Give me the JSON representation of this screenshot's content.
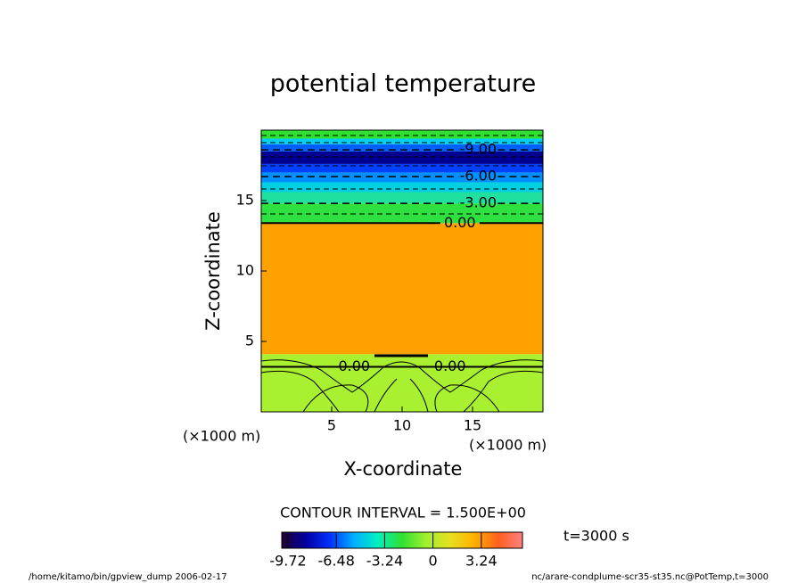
{
  "chart_data": {
    "type": "contour",
    "title": "potential temperature",
    "x_label": "X-coordinate",
    "y_label": "Z-coordinate",
    "x_unit_label": "(×1000 m)",
    "y_unit_label": "(×1000 m)",
    "xlim": [
      0,
      20
    ],
    "ylim": [
      0,
      20
    ],
    "xticks": [
      5,
      10,
      15
    ],
    "yticks": [
      5,
      10,
      15
    ],
    "fill_bands": [
      {
        "z": [
          0,
          4.1
        ],
        "color": "#a8f030"
      },
      {
        "z": [
          4.1,
          13.4
        ],
        "color": "#ffa200"
      },
      {
        "z": [
          13.4,
          14.8
        ],
        "color": "#2ee040"
      },
      {
        "z": [
          14.8,
          15.6
        ],
        "color": "#20e0a0"
      },
      {
        "z": [
          15.6,
          16.3
        ],
        "color": "#00d0e0"
      },
      {
        "z": [
          16.3,
          17.0
        ],
        "color": "#0090ff"
      },
      {
        "z": [
          17.0,
          17.6
        ],
        "color": "#0040ff"
      },
      {
        "z": [
          17.6,
          18.5
        ],
        "color": "#000090"
      },
      {
        "z": [
          18.5,
          19.0
        ],
        "color": "#0060ff"
      },
      {
        "z": [
          19.0,
          19.4
        ],
        "color": "#00d0f0"
      },
      {
        "z": [
          19.4,
          20
        ],
        "color": "#30e030"
      }
    ],
    "contours": [
      {
        "level": -9,
        "label": "-9.00",
        "z": 18.6,
        "x": 15.4
      },
      {
        "level": -6,
        "label": "-6.00",
        "z": 16.7,
        "x": 15.4
      },
      {
        "level": -3,
        "label": "-3.00",
        "z": 14.8,
        "x": 15.4
      },
      {
        "level": 0,
        "label": "0.00",
        "z": 13.4,
        "x": 14.1
      },
      {
        "level": 0,
        "label": "0.00",
        "z": 3.2,
        "x": 6.6
      },
      {
        "level": 0,
        "label": "0.00",
        "z": 3.2,
        "x": 13.4
      }
    ],
    "contour_interval_text": "CONTOUR INTERVAL = 1.500E+00",
    "colorbar": {
      "colormap": [
        "#200030",
        "#0000a0",
        "#0030ff",
        "#00b0ff",
        "#00f0c0",
        "#30e030",
        "#a0f030",
        "#e8e020",
        "#ffb000",
        "#ff6020",
        "#ff8080"
      ],
      "clim": [
        -10.14,
        6.0
      ],
      "ticks": [
        -9.72,
        -6.48,
        -3.24,
        0,
        3.24
      ]
    },
    "time_label": "t=3000 s",
    "footer_left": "/home/kitamo/bin/gpview_dump  2006-02-17",
    "footer_right": "nc/arare-condplume-scr35-st35.nc@PotTemp,t=3000"
  }
}
